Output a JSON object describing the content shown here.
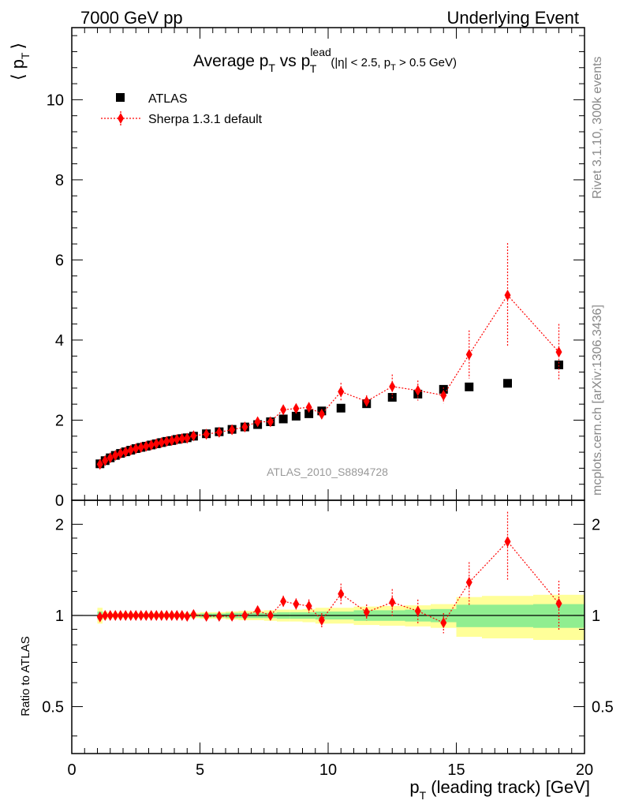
{
  "header": {
    "left": "7000 GeV pp",
    "right": "Underlying Event"
  },
  "side_labels": {
    "rivet": "Rivet 3.1.10,  300k events",
    "mcplots": "mcplots.cern.ch [arXiv:1306.3436]"
  },
  "main": {
    "title_prefix": "Average p",
    "title_sub_t": "T",
    "title_vs": " vs p",
    "title_sup_lead": "lead",
    "title_sub_t2": "T",
    "title_cuts_a": "(|η| < 2.5, p",
    "title_cuts_sub": "T",
    "title_cuts_b": " > 0.5 GeV)",
    "ylabel_left": "⟨ p",
    "ylabel_sub": "T",
    "ylabel_right": "⟩",
    "watermark": "ATLAS_2010_S8894728",
    "legend": {
      "data_label": "ATLAS",
      "mc_label": "Sherpa 1.3.1 default"
    },
    "y_tick_labels": [
      "0",
      "2",
      "4",
      "6",
      "8",
      "10"
    ]
  },
  "ratio": {
    "ylabel": "Ratio to ATLAS",
    "y_tick_labels": [
      "0.5",
      "1",
      "2"
    ]
  },
  "xaxis": {
    "label_p": "p",
    "label_sub": "T",
    "label_rest": " (leading track) [GeV]",
    "tick_labels": [
      "0",
      "5",
      "10",
      "15",
      "20"
    ]
  },
  "colors": {
    "data": "#000000",
    "mc": "#ff0000",
    "band_inner": "#90ee90",
    "band_outer": "#ffff99"
  },
  "chart_data": {
    "type": "scatter",
    "title": "Average pT vs pT lead (|η| < 2.5, pT > 0.5 GeV)",
    "xlabel": "pT (leading track) [GeV]",
    "ylabel": "⟨ pT ⟩",
    "xlim": [
      0,
      20
    ],
    "ylim": [
      0,
      11.8
    ],
    "ratio_ylim": [
      0.35,
      2.4
    ],
    "series": [
      {
        "name": "ATLAS",
        "x": [
          1.1,
          1.3,
          1.5,
          1.7,
          1.9,
          2.1,
          2.3,
          2.5,
          2.7,
          2.9,
          3.1,
          3.3,
          3.5,
          3.7,
          3.9,
          4.1,
          4.3,
          4.5,
          4.75,
          5.25,
          5.75,
          6.25,
          6.75,
          7.25,
          7.75,
          8.25,
          8.75,
          9.25,
          9.75,
          10.5,
          11.5,
          12.5,
          13.5,
          14.5,
          15.5,
          17.0,
          19.0
        ],
        "xerr": [
          0.1,
          0.1,
          0.1,
          0.1,
          0.1,
          0.1,
          0.1,
          0.1,
          0.1,
          0.1,
          0.1,
          0.1,
          0.1,
          0.1,
          0.1,
          0.1,
          0.1,
          0.1,
          0.25,
          0.25,
          0.25,
          0.25,
          0.25,
          0.25,
          0.25,
          0.25,
          0.25,
          0.25,
          0.25,
          0.5,
          0.5,
          0.5,
          0.5,
          0.5,
          0.5,
          1.0,
          1.0
        ],
        "y": [
          0.91,
          0.99,
          1.06,
          1.12,
          1.17,
          1.21,
          1.25,
          1.29,
          1.32,
          1.35,
          1.38,
          1.41,
          1.44,
          1.47,
          1.49,
          1.52,
          1.54,
          1.56,
          1.6,
          1.66,
          1.71,
          1.77,
          1.83,
          1.89,
          1.96,
          2.03,
          2.1,
          2.16,
          2.23,
          2.3,
          2.41,
          2.57,
          2.65,
          2.77,
          2.83,
          2.92,
          3.38
        ],
        "rel_err_inner": [
          0.03,
          0.01,
          0.01,
          0.01,
          0.01,
          0.01,
          0.01,
          0.01,
          0.01,
          0.01,
          0.01,
          0.01,
          0.01,
          0.01,
          0.01,
          0.01,
          0.01,
          0.01,
          0.01,
          0.015,
          0.015,
          0.02,
          0.02,
          0.02,
          0.02,
          0.025,
          0.025,
          0.025,
          0.03,
          0.03,
          0.04,
          0.04,
          0.045,
          0.05,
          0.085,
          0.085,
          0.09
        ],
        "rel_err_outer": [
          0.06,
          0.03,
          0.02,
          0.02,
          0.02,
          0.02,
          0.02,
          0.02,
          0.02,
          0.02,
          0.02,
          0.02,
          0.02,
          0.02,
          0.02,
          0.02,
          0.02,
          0.02,
          0.02,
          0.025,
          0.025,
          0.03,
          0.035,
          0.035,
          0.04,
          0.045,
          0.045,
          0.05,
          0.06,
          0.06,
          0.07,
          0.075,
          0.08,
          0.09,
          0.15,
          0.16,
          0.17
        ]
      },
      {
        "name": "Sherpa 1.3.1 default",
        "x": [
          1.1,
          1.3,
          1.5,
          1.7,
          1.9,
          2.1,
          2.3,
          2.5,
          2.7,
          2.9,
          3.1,
          3.3,
          3.5,
          3.7,
          3.9,
          4.1,
          4.3,
          4.5,
          4.75,
          5.25,
          5.75,
          6.25,
          6.75,
          7.25,
          7.75,
          8.25,
          8.75,
          9.25,
          9.75,
          10.5,
          11.5,
          12.5,
          13.5,
          14.5,
          15.5,
          17.0,
          19.0
        ],
        "y": [
          0.9,
          0.99,
          1.06,
          1.12,
          1.17,
          1.21,
          1.25,
          1.29,
          1.32,
          1.35,
          1.38,
          1.41,
          1.44,
          1.47,
          1.49,
          1.52,
          1.54,
          1.55,
          1.61,
          1.65,
          1.7,
          1.76,
          1.83,
          1.96,
          1.96,
          2.26,
          2.29,
          2.32,
          2.15,
          2.71,
          2.47,
          2.84,
          2.74,
          2.62,
          3.64,
          5.12,
          3.7
        ],
        "yerr": [
          0.01,
          0.01,
          0.01,
          0.01,
          0.01,
          0.01,
          0.01,
          0.01,
          0.01,
          0.01,
          0.01,
          0.01,
          0.01,
          0.01,
          0.01,
          0.02,
          0.02,
          0.02,
          0.03,
          0.03,
          0.04,
          0.04,
          0.05,
          0.06,
          0.06,
          0.1,
          0.1,
          0.12,
          0.12,
          0.22,
          0.15,
          0.3,
          0.25,
          0.2,
          0.6,
          1.3,
          0.7
        ]
      }
    ]
  }
}
